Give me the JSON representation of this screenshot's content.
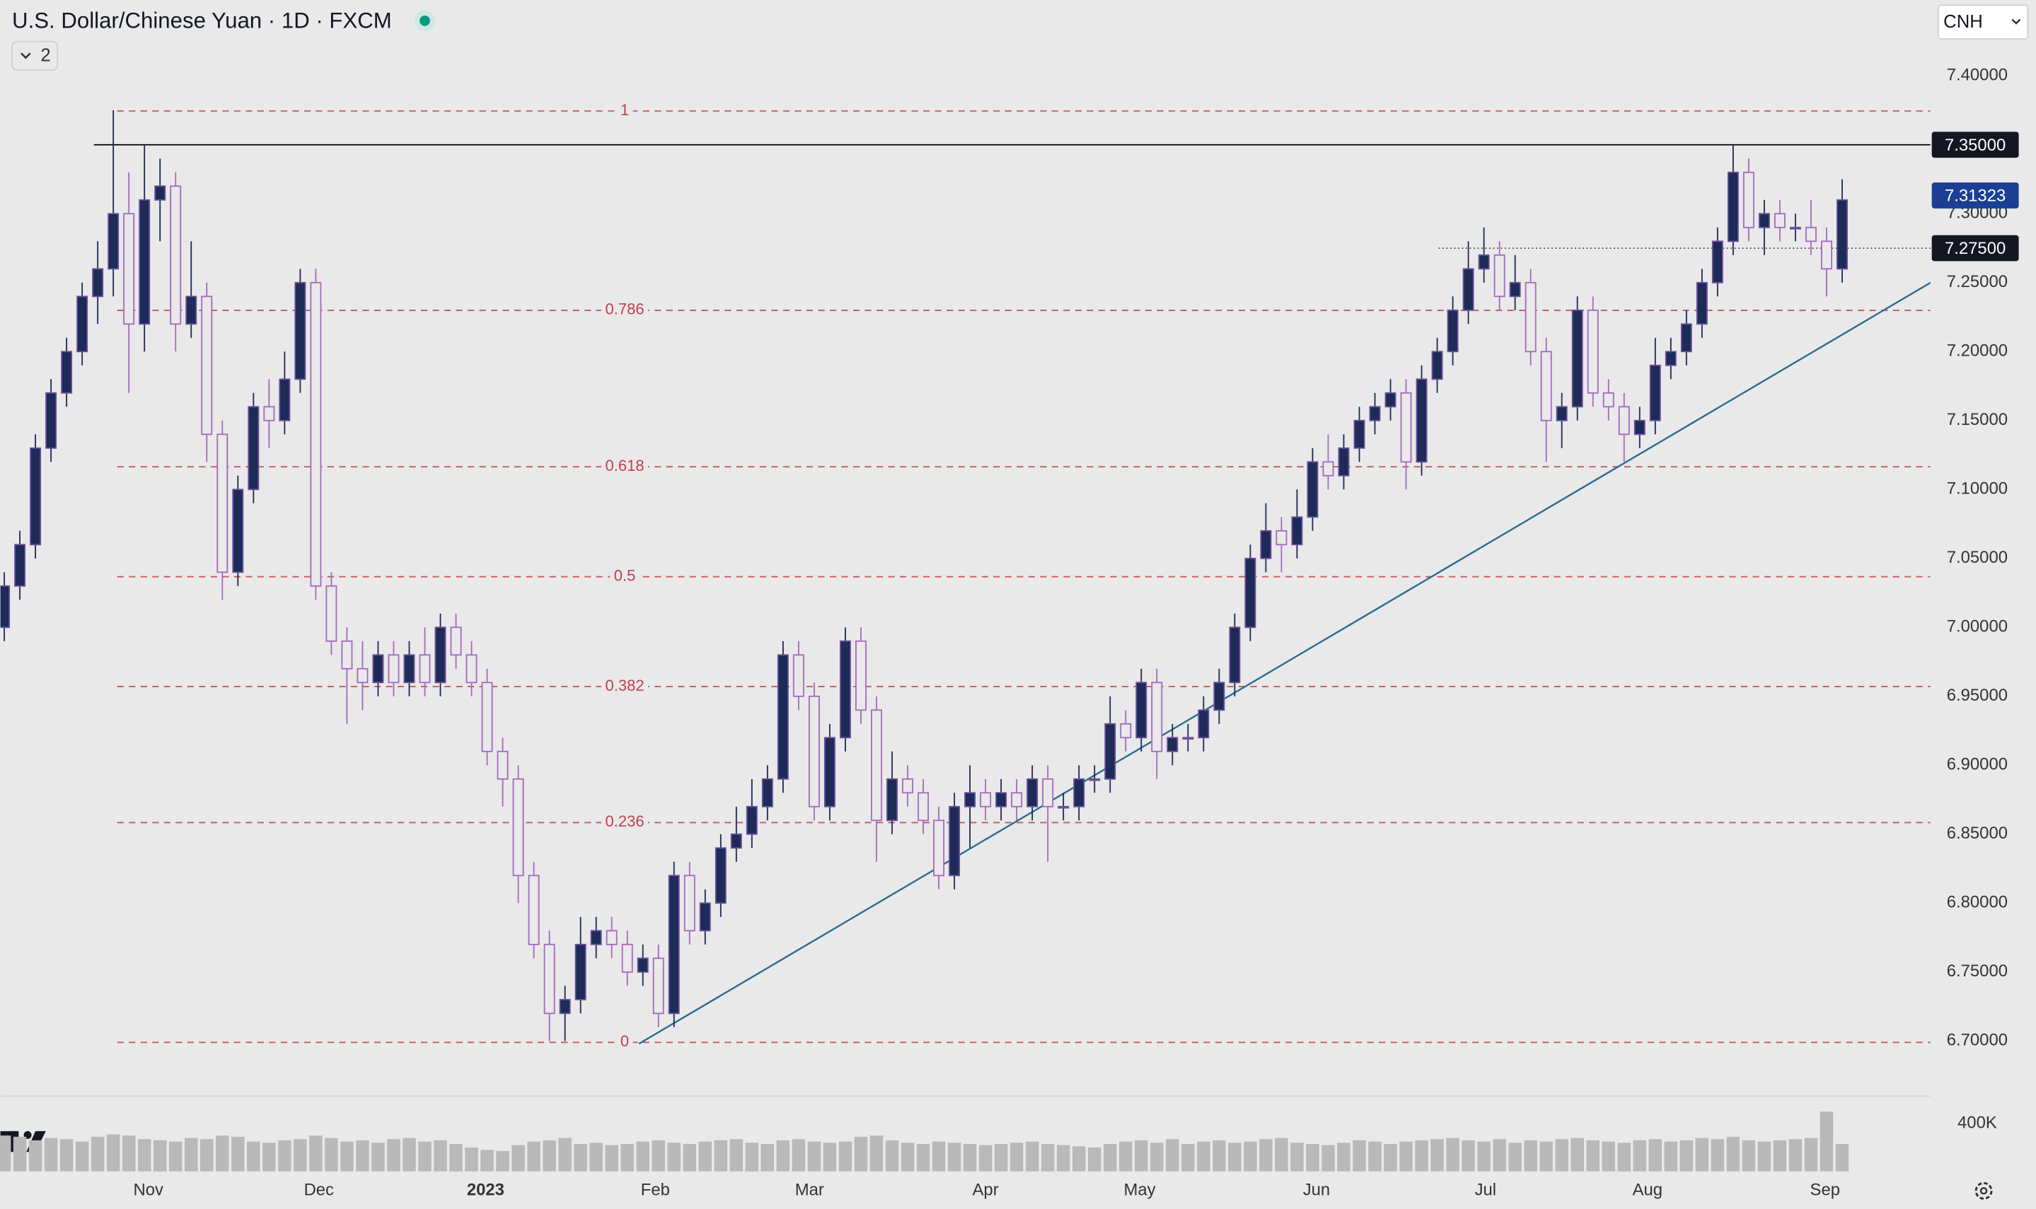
{
  "chart_data": {
    "type": "candlestick",
    "title": "U.S. Dollar/Chinese Yuan · 1D · FXCM",
    "symbol_menu": "CNH",
    "indicator_count": "2",
    "up_color": "#1c2b57",
    "down_color": "#a46bbf",
    "ylim": [
      6.66,
      7.455
    ],
    "yticks": [
      {
        "value": 7.4,
        "label": "7.40000"
      },
      {
        "value": 7.3,
        "label": "7.30000"
      },
      {
        "value": 7.25,
        "label": "7.25000"
      },
      {
        "value": 7.2,
        "label": "7.20000"
      },
      {
        "value": 7.15,
        "label": "7.15000"
      },
      {
        "value": 7.1,
        "label": "7.10000"
      },
      {
        "value": 7.05,
        "label": "7.05000"
      },
      {
        "value": 7.0,
        "label": "7.00000"
      },
      {
        "value": 6.95,
        "label": "6.95000"
      },
      {
        "value": 6.9,
        "label": "6.90000"
      },
      {
        "value": 6.85,
        "label": "6.85000"
      },
      {
        "value": 6.8,
        "label": "6.80000"
      },
      {
        "value": 6.75,
        "label": "6.75000"
      },
      {
        "value": 6.7,
        "label": "6.70000"
      }
    ],
    "xlim": [
      -0.25,
      123.67
    ],
    "xticks": [
      {
        "value": 9.25,
        "label": "Nov"
      },
      {
        "value": 20.2,
        "label": "Dec"
      },
      {
        "value": 30.9,
        "label": "2023"
      },
      {
        "value": 41.8,
        "label": "Feb"
      },
      {
        "value": 51.7,
        "label": "Mar"
      },
      {
        "value": 63,
        "label": "Apr"
      },
      {
        "value": 72.9,
        "label": "May"
      },
      {
        "value": 84.25,
        "label": "Jun"
      },
      {
        "value": 95.1,
        "label": "Jul"
      },
      {
        "value": 105.5,
        "label": "Aug"
      },
      {
        "value": 116.9,
        "label": "Sep"
      }
    ],
    "open": [
      7.0,
      7.03,
      7.06,
      7.13,
      7.17,
      7.2,
      7.24,
      7.26,
      7.3,
      7.22,
      7.31,
      7.32,
      7.22,
      7.24,
      7.14,
      7.04,
      7.1,
      7.16,
      7.15,
      7.18,
      7.25,
      7.03,
      6.99,
      6.97,
      6.96,
      6.98,
      6.96,
      6.98,
      6.96,
      7.0,
      6.98,
      6.96,
      6.91,
      6.89,
      6.82,
      6.77,
      6.72,
      6.73,
      6.77,
      6.78,
      6.77,
      6.75,
      6.76,
      6.72,
      6.82,
      6.78,
      6.8,
      6.84,
      6.85,
      6.87,
      6.89,
      6.98,
      6.95,
      6.87,
      6.92,
      6.99,
      6.94,
      6.86,
      6.89,
      6.88,
      6.86,
      6.82,
      6.87,
      6.88,
      6.87,
      6.88,
      6.87,
      6.89,
      6.87,
      6.87,
      6.89,
      6.89,
      6.93,
      6.92,
      6.96,
      6.91,
      6.92,
      6.92,
      6.94,
      6.96,
      7.0,
      7.05,
      7.07,
      7.06,
      7.08,
      7.12,
      7.11,
      7.13,
      7.15,
      7.16,
      7.17,
      7.12,
      7.18,
      7.2,
      7.23,
      7.26,
      7.27,
      7.24,
      7.25,
      7.2,
      7.15,
      7.16,
      7.23,
      7.17,
      7.16,
      7.14,
      7.15,
      7.19,
      7.2,
      7.22,
      7.25,
      7.28,
      7.33,
      7.29,
      7.3,
      7.29,
      7.29,
      7.28,
      7.26
    ],
    "high": [
      7.04,
      7.07,
      7.14,
      7.18,
      7.21,
      7.25,
      7.28,
      7.375,
      7.33,
      7.35,
      7.34,
      7.33,
      7.28,
      7.25,
      7.15,
      7.11,
      7.17,
      7.18,
      7.2,
      7.26,
      7.26,
      7.04,
      7.0,
      6.99,
      6.99,
      6.99,
      6.99,
      7.0,
      7.01,
      7.01,
      6.99,
      6.97,
      6.92,
      6.9,
      6.83,
      6.78,
      6.74,
      6.79,
      6.79,
      6.79,
      6.78,
      6.77,
      6.77,
      6.83,
      6.83,
      6.81,
      6.85,
      6.87,
      6.89,
      6.9,
      6.99,
      6.99,
      6.96,
      6.93,
      7.0,
      7.0,
      6.95,
      6.91,
      6.9,
      6.89,
      6.87,
      6.88,
      6.9,
      6.89,
      6.89,
      6.89,
      6.9,
      6.9,
      6.88,
      6.9,
      6.9,
      6.95,
      6.94,
      6.97,
      6.97,
      6.93,
      6.93,
      6.95,
      6.97,
      7.01,
      7.06,
      7.09,
      7.08,
      7.1,
      7.13,
      7.14,
      7.14,
      7.16,
      7.17,
      7.18,
      7.18,
      7.19,
      7.21,
      7.24,
      7.28,
      7.29,
      7.28,
      7.27,
      7.26,
      7.21,
      7.17,
      7.24,
      7.24,
      7.18,
      7.17,
      7.16,
      7.21,
      7.21,
      7.23,
      7.26,
      7.29,
      7.35,
      7.34,
      7.31,
      7.31,
      7.3,
      7.31,
      7.29,
      7.325
    ],
    "low": [
      6.99,
      7.02,
      7.05,
      7.12,
      7.16,
      7.19,
      7.22,
      7.24,
      7.17,
      7.2,
      7.28,
      7.2,
      7.21,
      7.12,
      7.02,
      7.03,
      7.09,
      7.13,
      7.14,
      7.17,
      7.02,
      6.98,
      6.93,
      6.94,
      6.95,
      6.95,
      6.95,
      6.95,
      6.95,
      6.97,
      6.95,
      6.9,
      6.87,
      6.8,
      6.76,
      6.7,
      6.7,
      6.72,
      6.76,
      6.76,
      6.74,
      6.74,
      6.71,
      6.71,
      6.77,
      6.77,
      6.79,
      6.83,
      6.84,
      6.86,
      6.88,
      6.94,
      6.86,
      6.86,
      6.91,
      6.93,
      6.83,
      6.85,
      6.87,
      6.85,
      6.81,
      6.81,
      6.84,
      6.86,
      6.86,
      6.86,
      6.86,
      6.83,
      6.86,
      6.86,
      6.88,
      6.88,
      6.91,
      6.91,
      6.89,
      6.9,
      6.91,
      6.91,
      6.93,
      6.95,
      6.99,
      7.04,
      7.04,
      7.05,
      7.07,
      7.1,
      7.1,
      7.12,
      7.14,
      7.15,
      7.1,
      7.11,
      7.17,
      7.19,
      7.22,
      7.25,
      7.23,
      7.23,
      7.19,
      7.12,
      7.13,
      7.15,
      7.16,
      7.15,
      7.12,
      7.13,
      7.14,
      7.18,
      7.19,
      7.21,
      7.24,
      7.27,
      7.28,
      7.27,
      7.28,
      7.28,
      7.27,
      7.24,
      7.25
    ],
    "close": [
      7.03,
      7.06,
      7.13,
      7.17,
      7.2,
      7.24,
      7.26,
      7.3,
      7.22,
      7.31,
      7.32,
      7.22,
      7.24,
      7.14,
      7.04,
      7.1,
      7.16,
      7.15,
      7.18,
      7.25,
      7.03,
      6.99,
      6.97,
      6.96,
      6.98,
      6.96,
      6.98,
      6.96,
      7.0,
      6.98,
      6.96,
      6.91,
      6.89,
      6.82,
      6.77,
      6.72,
      6.73,
      6.77,
      6.78,
      6.77,
      6.75,
      6.76,
      6.72,
      6.82,
      6.78,
      6.8,
      6.84,
      6.85,
      6.87,
      6.89,
      6.98,
      6.95,
      6.87,
      6.92,
      6.99,
      6.94,
      6.86,
      6.89,
      6.88,
      6.86,
      6.82,
      6.87,
      6.88,
      6.87,
      6.88,
      6.87,
      6.89,
      6.87,
      6.87,
      6.89,
      6.89,
      6.93,
      6.92,
      6.96,
      6.91,
      6.92,
      6.92,
      6.94,
      6.96,
      7.0,
      7.05,
      7.07,
      7.06,
      7.08,
      7.12,
      7.11,
      7.13,
      7.15,
      7.16,
      7.17,
      7.12,
      7.18,
      7.2,
      7.23,
      7.26,
      7.27,
      7.24,
      7.25,
      7.2,
      7.15,
      7.16,
      7.23,
      7.17,
      7.16,
      7.14,
      7.15,
      7.19,
      7.2,
      7.22,
      7.25,
      7.28,
      7.33,
      7.29,
      7.3,
      7.29,
      7.29,
      7.28,
      7.26,
      7.31
    ],
    "volume": {
      "color": "#b9b9b9",
      "ylim": [
        0,
        630000
      ],
      "yticks": [
        {
          "value": 400000,
          "label": "400K"
        }
      ],
      "values": [
        300000,
        290000,
        260000,
        280000,
        270000,
        250000,
        290000,
        310000,
        300000,
        270000,
        260000,
        250000,
        280000,
        270000,
        300000,
        290000,
        250000,
        240000,
        260000,
        270000,
        300000,
        280000,
        250000,
        260000,
        240000,
        270000,
        280000,
        250000,
        260000,
        230000,
        200000,
        180000,
        170000,
        220000,
        250000,
        260000,
        280000,
        230000,
        240000,
        220000,
        230000,
        250000,
        260000,
        240000,
        230000,
        250000,
        260000,
        270000,
        240000,
        230000,
        260000,
        270000,
        250000,
        240000,
        250000,
        290000,
        300000,
        260000,
        240000,
        230000,
        250000,
        240000,
        230000,
        220000,
        230000,
        240000,
        250000,
        230000,
        220000,
        210000,
        200000,
        230000,
        250000,
        260000,
        240000,
        270000,
        230000,
        250000,
        260000,
        240000,
        250000,
        270000,
        280000,
        240000,
        230000,
        220000,
        240000,
        260000,
        250000,
        230000,
        250000,
        260000,
        270000,
        280000,
        260000,
        250000,
        270000,
        240000,
        260000,
        250000,
        270000,
        280000,
        260000,
        250000,
        240000,
        260000,
        270000,
        250000,
        260000,
        280000,
        270000,
        290000,
        260000,
        250000,
        260000,
        270000,
        280000,
        500000,
        230000
      ]
    },
    "fib": {
      "low": 6.699,
      "high": 7.3745,
      "color": "#c2404a",
      "levels": [
        1,
        0.786,
        0.618,
        0.5,
        0.382,
        0.236,
        0
      ]
    },
    "price_lines": [
      {
        "value": 7.35,
        "label": "7.35000",
        "color": "#000000",
        "dash": "none"
      },
      {
        "value": 7.275,
        "label": "7.27500",
        "color": "#555555",
        "dash": "1 2"
      }
    ],
    "last_price": 7.31323,
    "last_price_color": "#1a3f94",
    "trendline": {
      "color": "#2a6a8f",
      "start": [
        40.75,
        6.698
      ],
      "end": [
        123.67,
        7.25
      ]
    }
  }
}
